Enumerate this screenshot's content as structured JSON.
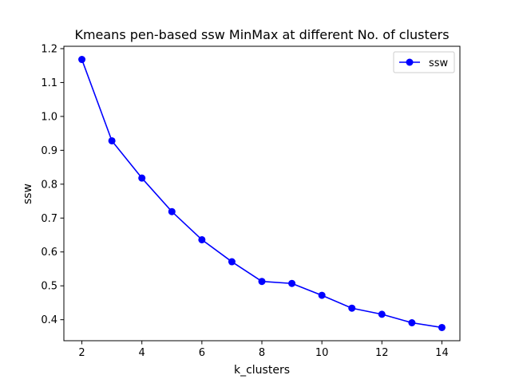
{
  "chart_data": {
    "type": "line",
    "title": "Kmeans pen-based ssw MinMax at different No. of clusters",
    "xlabel": "k_clusters",
    "ylabel": "ssw",
    "x": [
      2,
      3,
      4,
      5,
      6,
      7,
      8,
      9,
      10,
      11,
      12,
      13,
      14
    ],
    "series": [
      {
        "name": "ssw",
        "color": "#0000ff",
        "marker": "circle",
        "values": [
          1.168,
          0.928,
          0.818,
          0.719,
          0.636,
          0.571,
          0.513,
          0.507,
          0.472,
          0.434,
          0.416,
          0.391,
          0.377
        ]
      }
    ],
    "xlim": [
      1.4,
      14.6
    ],
    "ylim": [
      0.338,
      1.207
    ],
    "xticks": [
      2,
      4,
      6,
      8,
      10,
      12,
      14
    ],
    "yticks": [
      0.4,
      0.5,
      0.6,
      0.7,
      0.8,
      0.9,
      1.0,
      1.1,
      1.2
    ],
    "ytick_labels": [
      "0.4",
      "0.5",
      "0.6",
      "0.7",
      "0.8",
      "0.9",
      "1.0",
      "1.1",
      "1.2"
    ],
    "grid": false,
    "legend": "top-right"
  }
}
